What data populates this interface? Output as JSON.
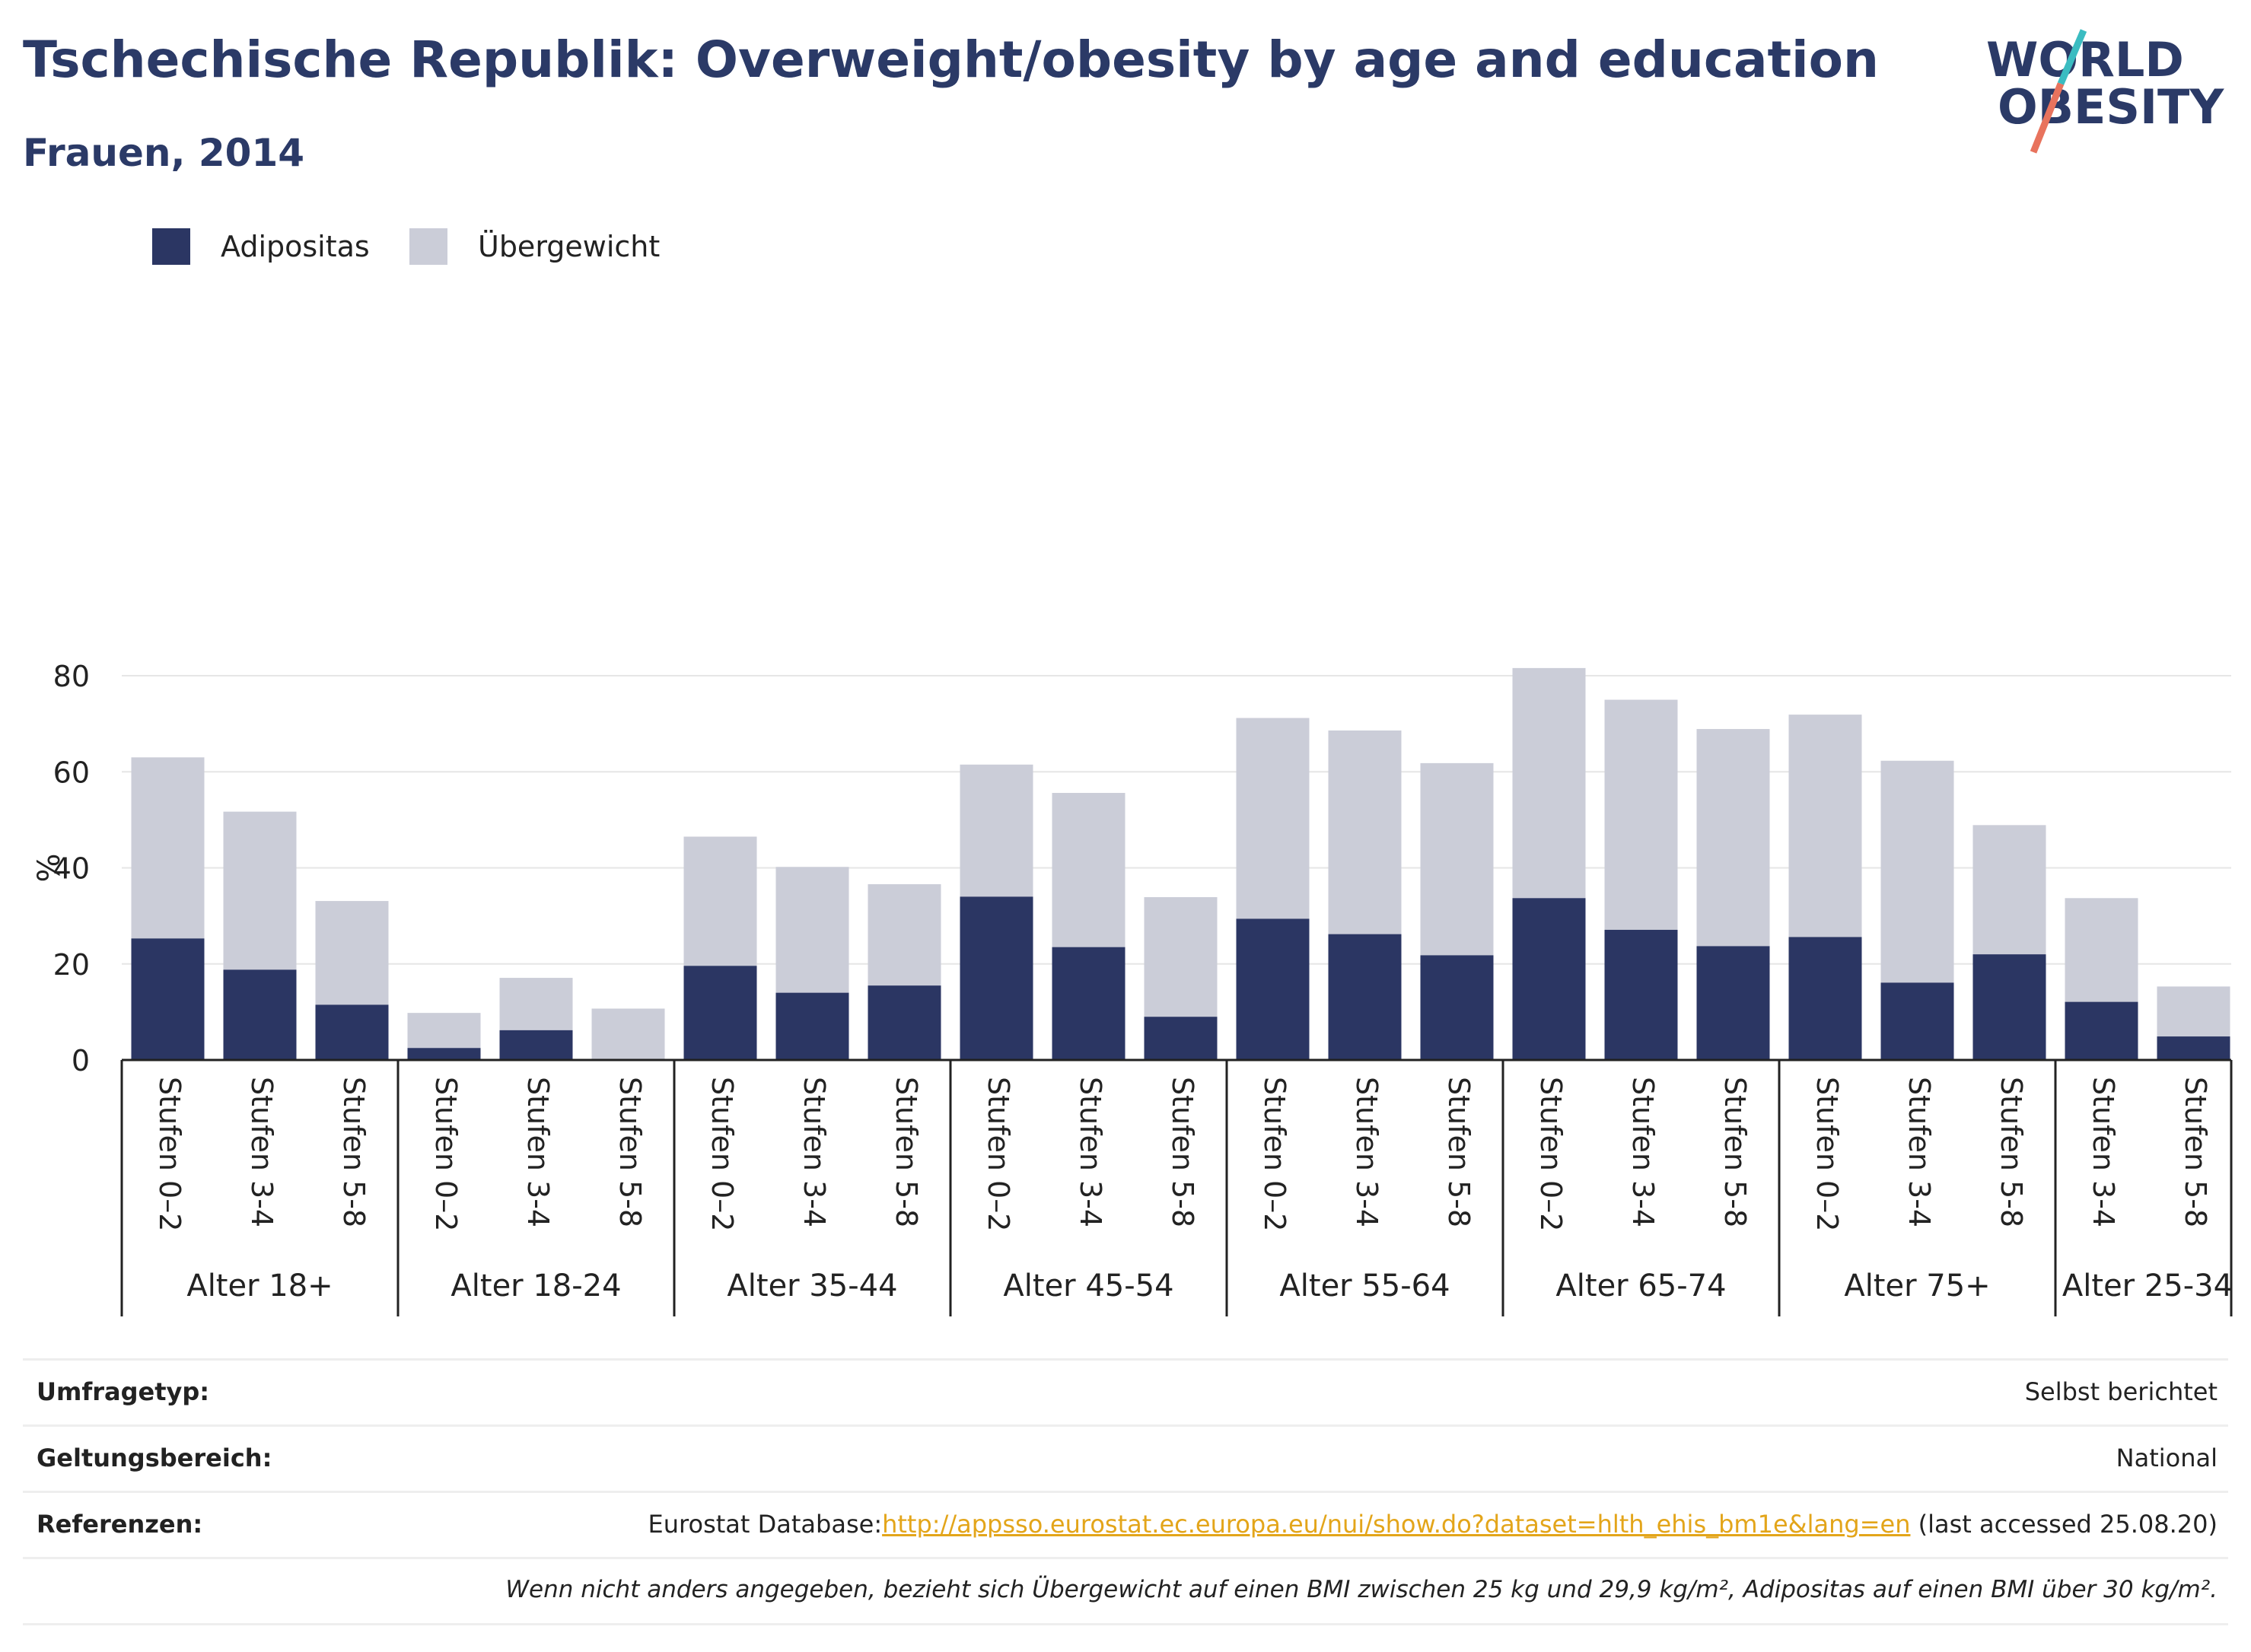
{
  "header": {
    "title": "Tschechische Republik: Overweight/obesity by age and education",
    "subtitle": "Frauen, 2014",
    "logo_line1": "WORLD",
    "logo_line2": "OBESITY"
  },
  "legend": {
    "obesity_label": "Adipositas",
    "overweight_label": "Übergewicht"
  },
  "colors": {
    "obesity": "#2b3663",
    "overweight": "#cbcdd8",
    "title": "#2b3a67",
    "logo_teal": "#3bbcc1",
    "logo_coral": "#e8735d",
    "link": "#e3a51a"
  },
  "chart_data": {
    "type": "bar",
    "stacked": true,
    "ylabel": "%",
    "ylim": [
      0,
      88
    ],
    "yticks": [
      0,
      20,
      40,
      60,
      80
    ],
    "grid": true,
    "legend_position": "top-left",
    "groups": [
      {
        "label": "Alter 18+",
        "bars": [
          {
            "category": "Stufen 0–2",
            "obesity": 25.3,
            "total": 63.0
          },
          {
            "category": "Stufen 3-4",
            "obesity": 18.8,
            "total": 51.7
          },
          {
            "category": "Stufen 5-8",
            "obesity": 11.5,
            "total": 33.1
          }
        ]
      },
      {
        "label": "Alter 18-24",
        "bars": [
          {
            "category": "Stufen 0–2",
            "obesity": 2.5,
            "total": 9.8
          },
          {
            "category": "Stufen 3-4",
            "obesity": 6.2,
            "total": 17.1
          },
          {
            "category": "Stufen 5-8",
            "obesity": 0,
            "total": 10.7
          }
        ]
      },
      {
        "label": "Alter 35-44",
        "bars": [
          {
            "category": "Stufen 0–2",
            "obesity": 19.6,
            "total": 46.5
          },
          {
            "category": "Stufen 3-4",
            "obesity": 14.0,
            "total": 40.2
          },
          {
            "category": "Stufen 5-8",
            "obesity": 15.5,
            "total": 36.6
          }
        ]
      },
      {
        "label": "Alter 45-54",
        "bars": [
          {
            "category": "Stufen 0–2",
            "obesity": 34.0,
            "total": 61.5
          },
          {
            "category": "Stufen 3-4",
            "obesity": 23.5,
            "total": 55.6
          },
          {
            "category": "Stufen 5-8",
            "obesity": 9.0,
            "total": 33.9
          }
        ]
      },
      {
        "label": "Alter 55-64",
        "bars": [
          {
            "category": "Stufen 0–2",
            "obesity": 29.4,
            "total": 71.2
          },
          {
            "category": "Stufen 3-4",
            "obesity": 26.2,
            "total": 68.6
          },
          {
            "category": "Stufen 5-8",
            "obesity": 21.8,
            "total": 61.8
          }
        ]
      },
      {
        "label": "Alter 65-74",
        "bars": [
          {
            "category": "Stufen 0–2",
            "obesity": 33.7,
            "total": 81.6
          },
          {
            "category": "Stufen 3-4",
            "obesity": 27.1,
            "total": 75.0
          },
          {
            "category": "Stufen 5-8",
            "obesity": 23.7,
            "total": 68.9
          }
        ]
      },
      {
        "label": "Alter 75+",
        "bars": [
          {
            "category": "Stufen 0–2",
            "obesity": 25.6,
            "total": 71.9
          },
          {
            "category": "Stufen 3-4",
            "obesity": 16.1,
            "total": 62.3
          },
          {
            "category": "Stufen 5-8",
            "obesity": 22.0,
            "total": 48.9
          }
        ]
      },
      {
        "label": "Alter 25-34",
        "bars": [
          {
            "category": "Stufen 3-4",
            "obesity": 12.1,
            "total": 33.7
          },
          {
            "category": "Stufen 5-8",
            "obesity": 4.9,
            "total": 15.3
          }
        ]
      }
    ]
  },
  "info": {
    "survey_label": "Umfragetyp:",
    "survey_value": "Selbst berichtet",
    "scope_label": "Geltungsbereich:",
    "scope_value": "National",
    "references_label": "Referenzen:",
    "references_prefix": "Eurostat Database:",
    "references_link": "http://appsso.eurostat.ec.europa.eu/nui/show.do?dataset=hlth_ehis_bm1e&lang=en",
    "references_suffix": " (last accessed 25.08.20)",
    "note": "Wenn nicht anders angegeben, bezieht sich Übergewicht auf einen BMI zwischen 25 kg und 29,9 kg/m², Adipositas auf einen BMI über 30 kg/m²."
  }
}
